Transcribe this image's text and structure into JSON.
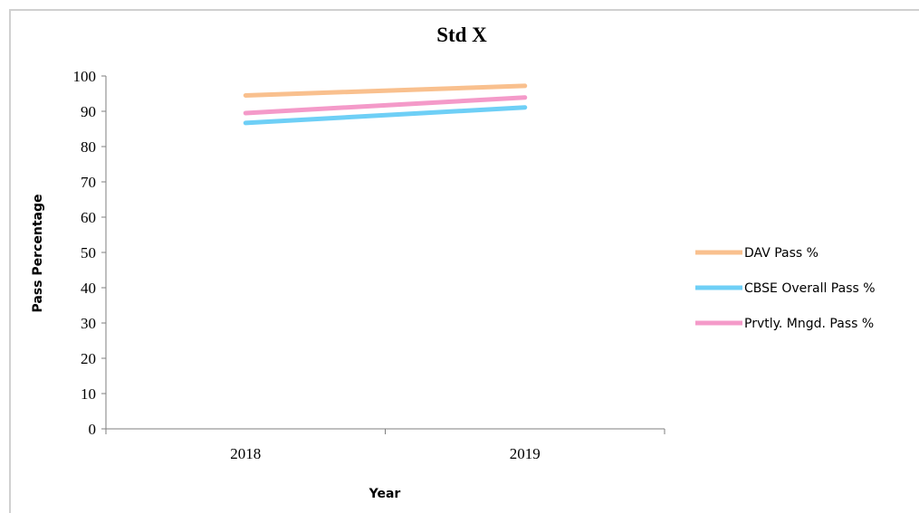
{
  "chart_data": {
    "type": "line",
    "title": "Std X",
    "xlabel": "Year",
    "ylabel": "Pass Percentage",
    "categories": [
      "2018",
      "2019"
    ],
    "ylim": [
      0,
      100
    ],
    "yticks": [
      0,
      10,
      20,
      30,
      40,
      50,
      60,
      70,
      80,
      90,
      100
    ],
    "grid": false,
    "legend_position": "right",
    "series": [
      {
        "name": "DAV Pass %",
        "values": [
          94.5,
          97.2
        ],
        "color": "#f9c08e"
      },
      {
        "name": "CBSE Overall Pass %",
        "values": [
          86.7,
          91.1
        ],
        "color": "#6ecff6"
      },
      {
        "name": "Prvtly. Mngd. Pass %",
        "values": [
          89.5,
          93.9
        ],
        "color": "#f49ac9"
      }
    ]
  }
}
